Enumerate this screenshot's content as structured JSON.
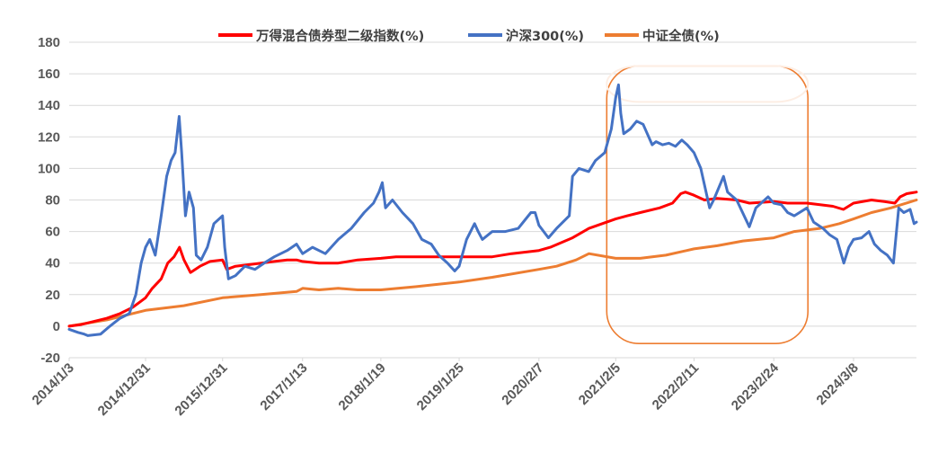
{
  "chart_data": {
    "type": "line",
    "legend_position": "top",
    "grid": true,
    "ylim": [
      -20,
      180
    ],
    "yticks": [
      "180",
      "160",
      "140",
      "120",
      "100",
      "80",
      "60",
      "40",
      "20",
      "0",
      "-20"
    ],
    "x_tick_labels": [
      "2014/1/3",
      "2014/12/31",
      "2015/12/31",
      "2017/1/13",
      "2018/1/19",
      "2019/1/25",
      "2020/2/7",
      "2021/2/5",
      "2022/2/11",
      "2023/2/24",
      "2024/3/8"
    ],
    "colors": {
      "grid": "#d9d9d9",
      "axis_text": "#595959",
      "highlight_box": "#ed7d31",
      "highlight_box_fill": "#fdeee4"
    },
    "highlight": {
      "x_start": "2021/2/5",
      "x_end": "2023/2/24",
      "y_top": 165,
      "y_bottom": -11
    },
    "series": [
      {
        "name": "万得混合债券型二级指数(%)",
        "color": "#ff0000",
        "points": [
          [
            "2014/1/3",
            0
          ],
          [
            "2014/3/1",
            1
          ],
          [
            "2014/5/1",
            3
          ],
          [
            "2014/7/1",
            5
          ],
          [
            "2014/9/1",
            8
          ],
          [
            "2014/11/1",
            12
          ],
          [
            "2014/12/31",
            18
          ],
          [
            "2015/2/1",
            24
          ],
          [
            "2015/3/15",
            30
          ],
          [
            "2015/4/15",
            40
          ],
          [
            "2015/5/15",
            44
          ],
          [
            "2015/6/10",
            50
          ],
          [
            "2015/7/1",
            42
          ],
          [
            "2015/8/1",
            34
          ],
          [
            "2015/9/15",
            38
          ],
          [
            "2015/11/1",
            41
          ],
          [
            "2015/12/31",
            42
          ],
          [
            "2016/1/20",
            36
          ],
          [
            "2016/3/1",
            38
          ],
          [
            "2016/5/1",
            39
          ],
          [
            "2016/7/1",
            40
          ],
          [
            "2016/9/1",
            41
          ],
          [
            "2016/11/1",
            42
          ],
          [
            "2016/12/15",
            42
          ],
          [
            "2017/1/13",
            41
          ],
          [
            "2017/4/1",
            40
          ],
          [
            "2017/7/1",
            40
          ],
          [
            "2017/10/1",
            42
          ],
          [
            "2018/1/19",
            43
          ],
          [
            "2018/4/1",
            44
          ],
          [
            "2018/7/1",
            44
          ],
          [
            "2018/10/1",
            44
          ],
          [
            "2019/1/25",
            44
          ],
          [
            "2019/4/1",
            44
          ],
          [
            "2019/7/1",
            44
          ],
          [
            "2019/10/1",
            46
          ],
          [
            "2020/2/7",
            48
          ],
          [
            "2020/4/1",
            50
          ],
          [
            "2020/7/15",
            56
          ],
          [
            "2020/10/1",
            62
          ],
          [
            "2021/2/5",
            68
          ],
          [
            "2021/4/1",
            70
          ],
          [
            "2021/6/1",
            72
          ],
          [
            "2021/9/1",
            75
          ],
          [
            "2021/11/1",
            78
          ],
          [
            "2021/12/10",
            84
          ],
          [
            "2022/1/1",
            85
          ],
          [
            "2022/2/11",
            83
          ],
          [
            "2022/4/1",
            80
          ],
          [
            "2022/6/1",
            81
          ],
          [
            "2022/9/1",
            80
          ],
          [
            "2022/11/1",
            78
          ],
          [
            "2023/2/24",
            79
          ],
          [
            "2023/5/1",
            78
          ],
          [
            "2023/8/1",
            78
          ],
          [
            "2023/10/1",
            77
          ],
          [
            "2023/12/1",
            76
          ],
          [
            "2024/1/20",
            74
          ],
          [
            "2024/3/8",
            78
          ],
          [
            "2024/6/1",
            80
          ],
          [
            "2024/8/1",
            79
          ],
          [
            "2024/9/20",
            78
          ],
          [
            "2024/10/15",
            82
          ],
          [
            "2024/11/15",
            84
          ],
          [
            "2024/12/31",
            85
          ]
        ]
      },
      {
        "name": "沪深300(%)",
        "color": "#4472c4",
        "points": [
          [
            "2014/1/3",
            -2
          ],
          [
            "2014/2/15",
            -4
          ],
          [
            "2014/3/15",
            -5
          ],
          [
            "2014/4/1",
            -6
          ],
          [
            "2014/6/1",
            -5
          ],
          [
            "2014/7/15",
            0
          ],
          [
            "2014/9/1",
            5
          ],
          [
            "2014/10/15",
            8
          ],
          [
            "2014/11/15",
            20
          ],
          [
            "2014/12/10",
            40
          ],
          [
            "2014/12/31",
            50
          ],
          [
            "2015/1/20",
            55
          ],
          [
            "2015/2/15",
            45
          ],
          [
            "2015/3/15",
            70
          ],
          [
            "2015/4/10",
            95
          ],
          [
            "2015/5/1",
            105
          ],
          [
            "2015/5/20",
            110
          ],
          [
            "2015/6/8",
            133
          ],
          [
            "2015/6/20",
            110
          ],
          [
            "2015/7/8",
            70
          ],
          [
            "2015/7/25",
            85
          ],
          [
            "2015/8/15",
            75
          ],
          [
            "2015/8/28",
            45
          ],
          [
            "2015/9/20",
            42
          ],
          [
            "2015/10/20",
            50
          ],
          [
            "2015/11/20",
            65
          ],
          [
            "2015/12/31",
            70
          ],
          [
            "2016/1/10",
            50
          ],
          [
            "2016/1/28",
            30
          ],
          [
            "2016/3/1",
            32
          ],
          [
            "2016/4/15",
            38
          ],
          [
            "2016/6/1",
            36
          ],
          [
            "2016/7/15",
            40
          ],
          [
            "2016/9/1",
            44
          ],
          [
            "2016/11/1",
            48
          ],
          [
            "2016/12/15",
            52
          ],
          [
            "2017/1/13",
            46
          ],
          [
            "2017/3/1",
            50
          ],
          [
            "2017/5/1",
            46
          ],
          [
            "2017/7/1",
            55
          ],
          [
            "2017/9/1",
            62
          ],
          [
            "2017/11/1",
            72
          ],
          [
            "2017/12/15",
            78
          ],
          [
            "2018/1/10",
            85
          ],
          [
            "2018/1/26",
            91
          ],
          [
            "2018/2/10",
            75
          ],
          [
            "2018/3/15",
            80
          ],
          [
            "2018/5/1",
            72
          ],
          [
            "2018/6/20",
            65
          ],
          [
            "2018/8/1",
            55
          ],
          [
            "2018/9/15",
            52
          ],
          [
            "2018/10/20",
            45
          ],
          [
            "2018/12/1",
            40
          ],
          [
            "2019/1/4",
            35
          ],
          [
            "2019/1/25",
            38
          ],
          [
            "2019/3/1",
            55
          ],
          [
            "2019/4/8",
            65
          ],
          [
            "2019/4/25",
            60
          ],
          [
            "2019/5/15",
            55
          ],
          [
            "2019/7/1",
            60
          ],
          [
            "2019/9/1",
            60
          ],
          [
            "2019/11/1",
            62
          ],
          [
            "2019/12/31",
            72
          ],
          [
            "2020/1/20",
            72
          ],
          [
            "2020/2/7",
            64
          ],
          [
            "2020/3/23",
            56
          ],
          [
            "2020/5/1",
            62
          ],
          [
            "2020/6/30",
            70
          ],
          [
            "2020/7/15",
            95
          ],
          [
            "2020/8/15",
            100
          ],
          [
            "2020/9/30",
            98
          ],
          [
            "2020/11/1",
            105
          ],
          [
            "2020/12/15",
            110
          ],
          [
            "2021/1/15",
            125
          ],
          [
            "2021/2/5",
            145
          ],
          [
            "2021/2/18",
            153
          ],
          [
            "2021/3/1",
            135
          ],
          [
            "2021/3/15",
            122
          ],
          [
            "2021/4/15",
            125
          ],
          [
            "2021/5/15",
            130
          ],
          [
            "2021/6/15",
            128
          ],
          [
            "2021/7/28",
            115
          ],
          [
            "2021/8/15",
            117
          ],
          [
            "2021/9/15",
            115
          ],
          [
            "2021/10/15",
            116
          ],
          [
            "2021/11/15",
            114
          ],
          [
            "2021/12/15",
            118
          ],
          [
            "2022/1/10",
            115
          ],
          [
            "2022/2/11",
            110
          ],
          [
            "2022/3/15",
            100
          ],
          [
            "2022/4/26",
            75
          ],
          [
            "2022/5/15",
            80
          ],
          [
            "2022/7/1",
            95
          ],
          [
            "2022/7/20",
            85
          ],
          [
            "2022/9/1",
            80
          ],
          [
            "2022/10/31",
            63
          ],
          [
            "2022/12/1",
            75
          ],
          [
            "2023/1/28",
            82
          ],
          [
            "2023/2/24",
            78
          ],
          [
            "2023/4/1",
            77
          ],
          [
            "2023/5/1",
            72
          ],
          [
            "2023/6/1",
            70
          ],
          [
            "2023/7/31",
            75
          ],
          [
            "2023/9/1",
            66
          ],
          [
            "2023/10/15",
            62
          ],
          [
            "2023/11/15",
            58
          ],
          [
            "2023/12/20",
            55
          ],
          [
            "2024/1/22",
            40
          ],
          [
            "2024/2/15",
            50
          ],
          [
            "2024/3/8",
            55
          ],
          [
            "2024/4/15",
            56
          ],
          [
            "2024/5/20",
            60
          ],
          [
            "2024/6/15",
            52
          ],
          [
            "2024/7/15",
            48
          ],
          [
            "2024/8/15",
            45
          ],
          [
            "2024/9/13",
            40
          ],
          [
            "2024/10/8",
            75
          ],
          [
            "2024/11/1",
            72
          ],
          [
            "2024/12/1",
            74
          ],
          [
            "2024/12/20",
            65
          ],
          [
            "2024/12/31",
            66
          ]
        ]
      },
      {
        "name": "中证全债(%)",
        "color": "#ed7d31",
        "points": [
          [
            "2014/1/3",
            0
          ],
          [
            "2014/7/1",
            4
          ],
          [
            "2014/12/31",
            10
          ],
          [
            "2015/6/30",
            13
          ],
          [
            "2015/12/31",
            18
          ],
          [
            "2016/6/30",
            20
          ],
          [
            "2016/12/15",
            22
          ],
          [
            "2017/1/13",
            24
          ],
          [
            "2017/4/1",
            23
          ],
          [
            "2017/7/1",
            24
          ],
          [
            "2017/10/1",
            23
          ],
          [
            "2018/1/19",
            23
          ],
          [
            "2018/7/1",
            25
          ],
          [
            "2019/1/25",
            28
          ],
          [
            "2019/7/1",
            31
          ],
          [
            "2020/2/7",
            36
          ],
          [
            "2020/5/1",
            38
          ],
          [
            "2020/8/1",
            42
          ],
          [
            "2020/10/1",
            46
          ],
          [
            "2021/2/5",
            43
          ],
          [
            "2021/6/1",
            43
          ],
          [
            "2021/10/1",
            45
          ],
          [
            "2022/2/11",
            49
          ],
          [
            "2022/6/1",
            51
          ],
          [
            "2022/10/1",
            54
          ],
          [
            "2023/2/24",
            56
          ],
          [
            "2023/6/1",
            60
          ],
          [
            "2023/10/1",
            62
          ],
          [
            "2024/1/1",
            65
          ],
          [
            "2024/3/8",
            68
          ],
          [
            "2024/6/1",
            72
          ],
          [
            "2024/9/1",
            75
          ],
          [
            "2024/12/31",
            80
          ]
        ]
      }
    ]
  }
}
